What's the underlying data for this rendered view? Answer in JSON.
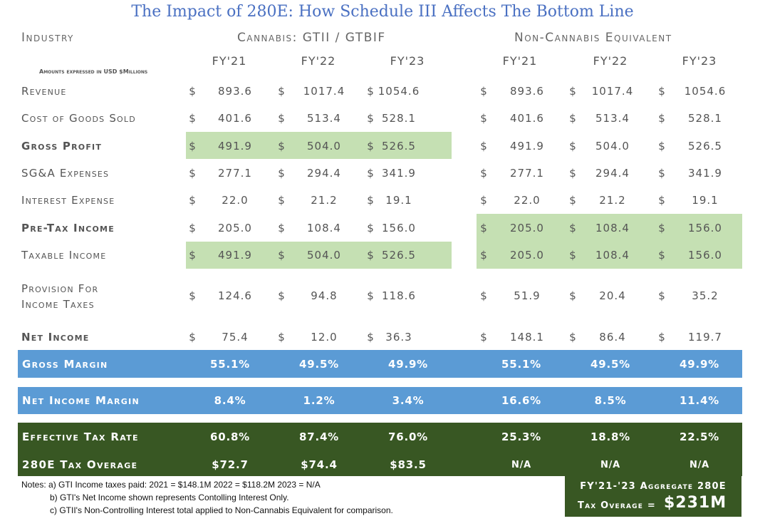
{
  "title": "The Impact of 280E: How Schedule III Affects The Bottom Line",
  "headers": {
    "industry": "Industry",
    "cannabis": "Cannabis: GTII / GTBIF",
    "noncannabis": "Non-Cannabis Equivalent",
    "years": [
      "FY'21",
      "FY'22",
      "FY'23",
      "FY'21",
      "FY'22",
      "FY'23"
    ],
    "amounts_note": "Amounts expressed in USD $Millions"
  },
  "currency_symbol": "$",
  "rows": [
    {
      "label": "Revenue",
      "values": [
        "893.6",
        "1017.4",
        "1054.6",
        "893.6",
        "1017.4",
        "1054.6"
      ]
    },
    {
      "label": "Cost of Goods Sold",
      "values": [
        "401.6",
        "513.4",
        "528.1",
        "401.6",
        "513.4",
        "528.1"
      ]
    },
    {
      "label": "Gross Profit",
      "values": [
        "491.9",
        "504.0",
        "526.5",
        "491.9",
        "504.0",
        "526.5"
      ]
    },
    {
      "label": "SG&A Expenses",
      "values": [
        "277.1",
        "294.4",
        "341.9",
        "277.1",
        "294.4",
        "341.9"
      ]
    },
    {
      "label": "Interest Expense",
      "values": [
        "22.0",
        "21.2",
        "19.1",
        "22.0",
        "21.2",
        "19.1"
      ]
    },
    {
      "label": "Pre-Tax Income",
      "values": [
        "205.0",
        "108.4",
        "156.0",
        "205.0",
        "108.4",
        "156.0"
      ]
    },
    {
      "label": "Taxable Income",
      "values": [
        "491.9",
        "504.0",
        "526.5",
        "205.0",
        "108.4",
        "156.0"
      ]
    },
    {
      "label_line1": "Provision For",
      "label_line2": "Income Taxes",
      "values": [
        "124.6",
        "94.8",
        "118.6",
        "51.9",
        "20.4",
        "35.2"
      ]
    },
    {
      "label": "Net Income",
      "values": [
        "75.4",
        "12.0",
        "36.3",
        "148.1",
        "86.4",
        "119.7"
      ]
    }
  ],
  "bands": {
    "gross_margin": {
      "label": "Gross Margin",
      "values": [
        "55.1%",
        "49.5%",
        "49.9%",
        "55.1%",
        "49.5%",
        "49.9%"
      ]
    },
    "net_income_margin": {
      "label": "Net Income Margin",
      "values": [
        "8.4%",
        "1.2%",
        "3.4%",
        "16.6%",
        "8.5%",
        "11.4%"
      ]
    },
    "effective_tax_rate": {
      "label": "Effective Tax Rate",
      "values": [
        "60.8%",
        "87.4%",
        "76.0%",
        "25.3%",
        "18.8%",
        "22.5%"
      ]
    },
    "tax_overage": {
      "label": "280E Tax Overage",
      "values": [
        "$72.7",
        "$74.4",
        "$83.5",
        "N/A",
        "N/A",
        "N/A"
      ]
    }
  },
  "notes": {
    "a": "Notes: a) GTI Income taxes paid: 2021 = $148.1M 2022 = $118.2M 2023 = N/A",
    "b": "b) GTI's Net Income shown represents Contolling Interest Only.",
    "c": "c) GTII's Non-Controlling Interest total applied to Non-Cannabis Equivalent for comparison."
  },
  "aggregate": {
    "line1": "FY'21-'23 Aggregate 280E",
    "line2_label": "Tax Overage =",
    "amount": "$231M"
  },
  "colors": {
    "title": "#4a70c2",
    "highlight_green": "#c5e0b3",
    "band_blue": "#5b9bd5",
    "band_dark_green": "#385723"
  }
}
